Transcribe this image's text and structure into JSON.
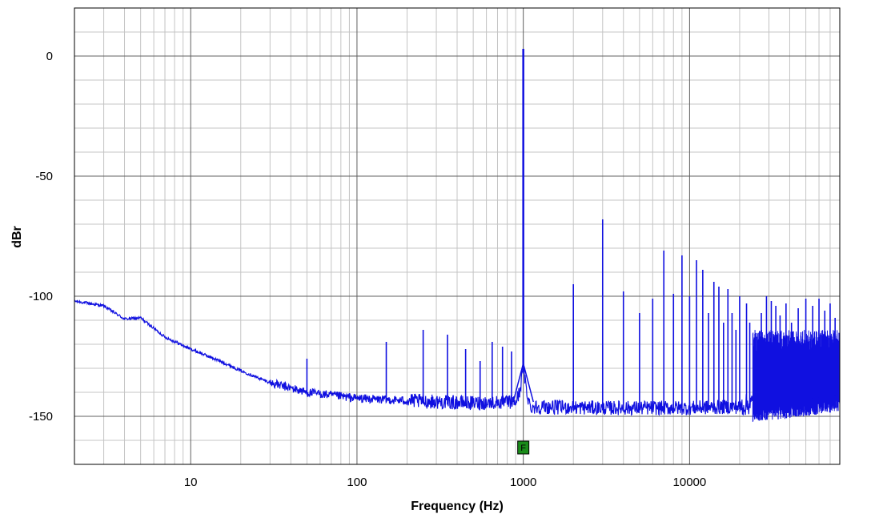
{
  "chart_data": {
    "type": "line",
    "xlabel": "Frequency (Hz)",
    "ylabel": "dBr",
    "x_scale": "log",
    "xlim": [
      2,
      80000
    ],
    "ylim": [
      -170,
      20
    ],
    "grid": true,
    "x_ticks": [
      {
        "value": 10,
        "label": "10"
      },
      {
        "value": 100,
        "label": "100"
      },
      {
        "value": 1000,
        "label": "1000"
      },
      {
        "value": 10000,
        "label": "10000"
      }
    ],
    "y_ticks": [
      {
        "value": 0,
        "label": "0"
      },
      {
        "value": -50,
        "label": "-50"
      },
      {
        "value": -100,
        "label": "-100"
      },
      {
        "value": -150,
        "label": "-150"
      }
    ],
    "series": [
      {
        "color": "#1010e0",
        "noise_floor": [
          [
            2,
            -102
          ],
          [
            3,
            -104
          ],
          [
            4,
            -109.5
          ],
          [
            5,
            -109
          ],
          [
            7,
            -117
          ],
          [
            10,
            -122
          ],
          [
            15,
            -127
          ],
          [
            20,
            -131
          ],
          [
            30,
            -136
          ],
          [
            50,
            -140
          ],
          [
            100,
            -142.5
          ],
          [
            200,
            -143.5
          ],
          [
            500,
            -144.5
          ],
          [
            900,
            -144
          ],
          [
            950,
            -140
          ],
          [
            1000,
            -130
          ],
          [
            1050,
            -140
          ],
          [
            1100,
            -146
          ],
          [
            3000,
            -146.5
          ],
          [
            10000,
            -146.5
          ],
          [
            20000,
            -146
          ],
          [
            25000,
            -144
          ],
          [
            40000,
            -143
          ],
          [
            80000,
            -140
          ]
        ],
        "peaks": [
          [
            50,
            -126
          ],
          [
            150,
            -119
          ],
          [
            250,
            -114
          ],
          [
            350,
            -116
          ],
          [
            450,
            -122
          ],
          [
            550,
            -127
          ],
          [
            650,
            -119
          ],
          [
            750,
            -121
          ],
          [
            850,
            -123
          ],
          [
            1000,
            3
          ],
          [
            2000,
            -95
          ],
          [
            3000,
            -68
          ],
          [
            4000,
            -98
          ],
          [
            5000,
            -107
          ],
          [
            6000,
            -101
          ],
          [
            7000,
            -81
          ],
          [
            8000,
            -99
          ],
          [
            9000,
            -83
          ],
          [
            10000,
            -100
          ],
          [
            11000,
            -85
          ],
          [
            12000,
            -89
          ],
          [
            13000,
            -107
          ],
          [
            14000,
            -94
          ],
          [
            15000,
            -96
          ],
          [
            16000,
            -111
          ],
          [
            17000,
            -97
          ],
          [
            18000,
            -107
          ],
          [
            19000,
            -114
          ],
          [
            20000,
            -100
          ],
          [
            22000,
            -103
          ],
          [
            23000,
            -111
          ],
          [
            27000,
            -107
          ],
          [
            29000,
            -100
          ],
          [
            31000,
            -102
          ],
          [
            33000,
            -104
          ],
          [
            35000,
            -108
          ],
          [
            38000,
            -103
          ],
          [
            41000,
            -111
          ],
          [
            45000,
            -105
          ],
          [
            50000,
            -101
          ],
          [
            55000,
            -104
          ],
          [
            60000,
            -101
          ],
          [
            65000,
            -106
          ],
          [
            70000,
            -103
          ],
          [
            75000,
            -109
          ]
        ]
      }
    ],
    "marker": {
      "label": "F",
      "x": 1000,
      "y": -163,
      "color": "#1a8c1a"
    }
  }
}
